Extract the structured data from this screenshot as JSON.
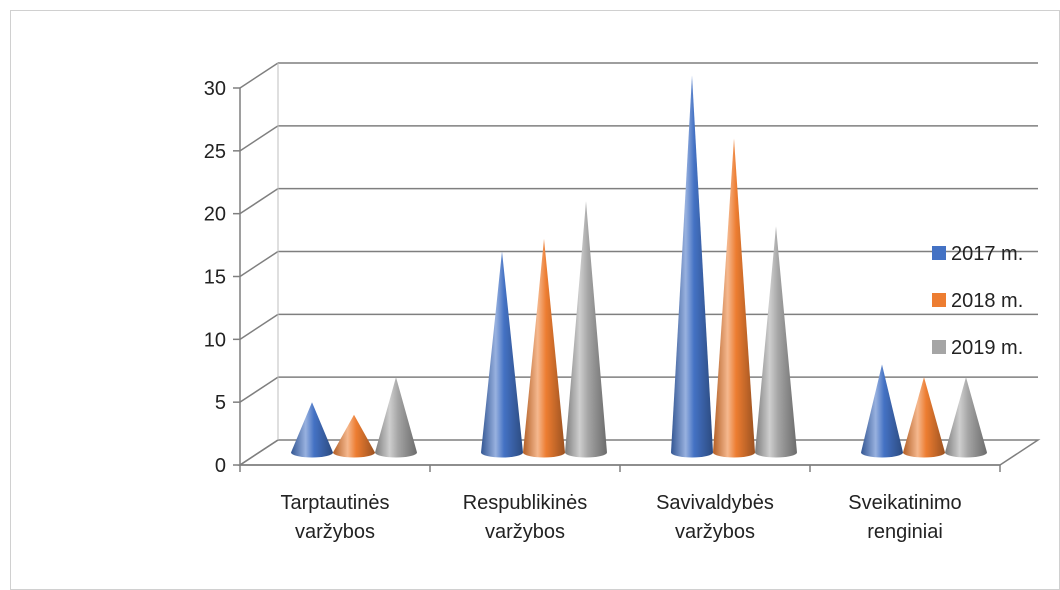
{
  "chart_data": {
    "type": "bar",
    "style": "3d-cone",
    "categories": [
      [
        "Tarptautinės",
        "varžybos"
      ],
      [
        "Respublikinės",
        "varžybos"
      ],
      [
        "Savivaldybės",
        "varžybos"
      ],
      [
        "Sveikatinimo",
        "renginiai"
      ]
    ],
    "series": [
      {
        "name": "2017 m.",
        "color": "#4472C4",
        "values": [
          4,
          16,
          30,
          7
        ]
      },
      {
        "name": "2018 m.",
        "color": "#ED7D31",
        "values": [
          3,
          17,
          25,
          6
        ]
      },
      {
        "name": "2019 m.",
        "color": "#A5A5A5",
        "values": [
          6,
          20,
          18,
          6
        ]
      }
    ],
    "yticks": [
      0,
      5,
      10,
      15,
      20,
      25,
      30
    ],
    "ylim": [
      0,
      30
    ],
    "grid": true,
    "legend_position": "right"
  }
}
